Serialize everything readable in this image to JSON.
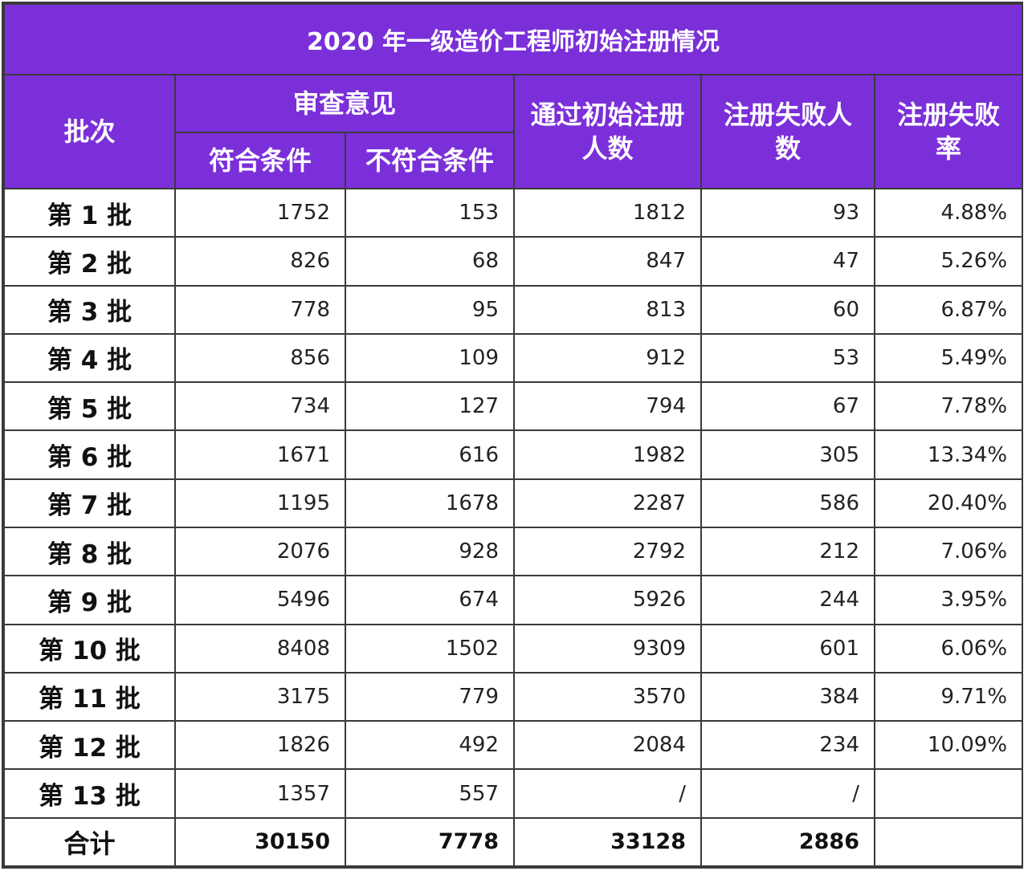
{
  "table": {
    "title": "2020 年一级造价工程师初始注册情况",
    "headers": {
      "batch": "批次",
      "review": "审查意见",
      "qualified": "符合条件",
      "unqualified": "不符合条件",
      "passed_line1": "通过初始注册",
      "passed_line2": "人数",
      "failed_line1": "注册失败人",
      "failed_line2": "数",
      "rate_line1": "注册失败",
      "rate_line2": "率"
    },
    "rows": [
      {
        "batch": "第 1 批",
        "qualified": "1752",
        "unqualified": "153",
        "passed": "1812",
        "failed": "93",
        "rate": "4.88%"
      },
      {
        "batch": "第 2 批",
        "qualified": "826",
        "unqualified": "68",
        "passed": "847",
        "failed": "47",
        "rate": "5.26%"
      },
      {
        "batch": "第 3 批",
        "qualified": "778",
        "unqualified": "95",
        "passed": "813",
        "failed": "60",
        "rate": "6.87%"
      },
      {
        "batch": "第 4 批",
        "qualified": "856",
        "unqualified": "109",
        "passed": "912",
        "failed": "53",
        "rate": "5.49%"
      },
      {
        "batch": "第 5 批",
        "qualified": "734",
        "unqualified": "127",
        "passed": "794",
        "failed": "67",
        "rate": "7.78%"
      },
      {
        "batch": "第 6 批",
        "qualified": "1671",
        "unqualified": "616",
        "passed": "1982",
        "failed": "305",
        "rate": "13.34%"
      },
      {
        "batch": "第 7 批",
        "qualified": "1195",
        "unqualified": "1678",
        "passed": "2287",
        "failed": "586",
        "rate": "20.40%"
      },
      {
        "batch": "第 8 批",
        "qualified": "2076",
        "unqualified": "928",
        "passed": "2792",
        "failed": "212",
        "rate": "7.06%"
      },
      {
        "batch": "第 9 批",
        "qualified": "5496",
        "unqualified": "674",
        "passed": "5926",
        "failed": "244",
        "rate": "3.95%"
      },
      {
        "batch": "第 10 批",
        "qualified": "8408",
        "unqualified": "1502",
        "passed": "9309",
        "failed": "601",
        "rate": "6.06%"
      },
      {
        "batch": "第 11 批",
        "qualified": "3175",
        "unqualified": "779",
        "passed": "3570",
        "failed": "384",
        "rate": "9.71%"
      },
      {
        "batch": "第 12 批",
        "qualified": "1826",
        "unqualified": "492",
        "passed": "2084",
        "failed": "234",
        "rate": "10.09%"
      },
      {
        "batch": "第 13 批",
        "qualified": "1357",
        "unqualified": "557",
        "passed": "/",
        "failed": "/",
        "rate": ""
      }
    ],
    "total": {
      "batch": "合计",
      "qualified": "30150",
      "unqualified": "7778",
      "passed": "33128",
      "failed": "2886",
      "rate": ""
    },
    "colors": {
      "header_bg": "#7b2fd9",
      "header_text": "#ffffff",
      "border": "#3a3a3a"
    }
  }
}
